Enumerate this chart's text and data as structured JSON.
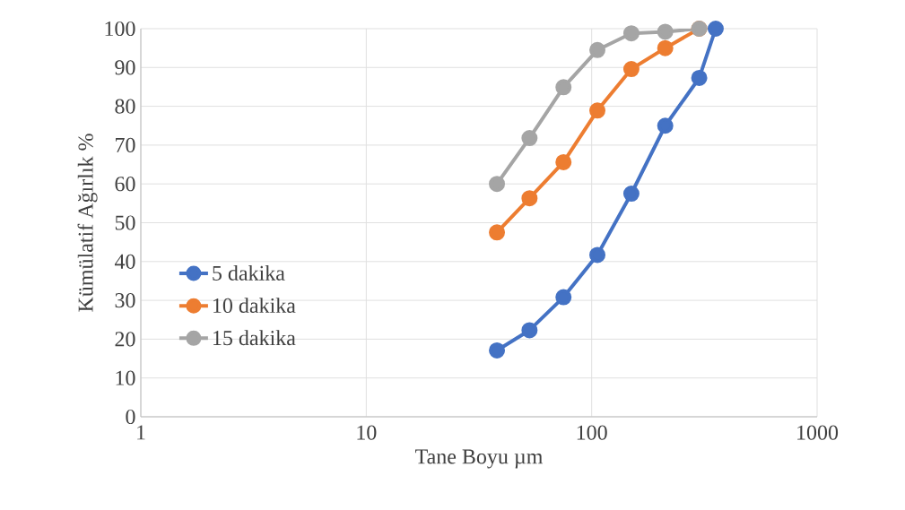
{
  "chart_data": {
    "type": "line",
    "xlabel": "Tane Boyu µm",
    "ylabel": "Kümülatif Ağırlık %",
    "x": [
      38,
      53,
      75,
      106,
      150,
      212,
      300,
      355
    ],
    "series": [
      {
        "name": "5 dakika",
        "color": "#4472c4",
        "values": [
          17.1,
          22.3,
          30.8,
          41.7,
          57.5,
          75.0,
          87.3,
          100
        ]
      },
      {
        "name": "10 dakika",
        "color": "#ed7d31",
        "x": [
          38,
          53,
          75,
          106,
          150,
          212,
          300
        ],
        "values": [
          47.5,
          56.3,
          65.6,
          78.9,
          89.6,
          95.0,
          100
        ]
      },
      {
        "name": "15 dakika",
        "color": "#a5a5a5",
        "x": [
          38,
          53,
          75,
          106,
          150,
          212,
          300
        ],
        "values": [
          60.0,
          71.8,
          84.9,
          94.5,
          98.8,
          99.2,
          100
        ]
      }
    ],
    "log": "x",
    "xlim": [
      1,
      1000
    ],
    "xticks": [
      1,
      10,
      100,
      1000
    ],
    "ylim": [
      0,
      100
    ],
    "yticks": [
      0,
      10,
      20,
      30,
      40,
      50,
      60,
      70,
      80,
      90,
      100
    ],
    "grid": true,
    "legend": "left",
    "marker": "circle",
    "line_style": "solid"
  }
}
